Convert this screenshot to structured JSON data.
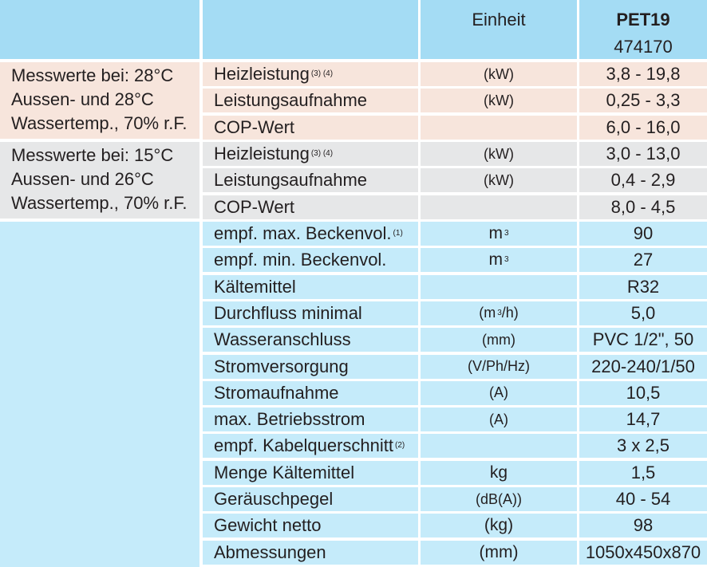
{
  "header": {
    "unit_label": "Einheit",
    "model_name": "PET19",
    "model_number": "474170"
  },
  "group1": {
    "lines": [
      "Messwerte bei: 28°C",
      "Aussen- und 28°C",
      "Wassertemp., 70% r.F."
    ],
    "rows": [
      {
        "param": "Heizleistung",
        "note": "(3) (4)",
        "unit": "(kW)",
        "value": "3,8 - 19,8"
      },
      {
        "param": "Leistungsaufnahme",
        "note": "",
        "unit": "(kW)",
        "value": "0,25 - 3,3"
      },
      {
        "param": "COP-Wert",
        "note": "",
        "unit": "",
        "value": "6,0 - 16,0"
      }
    ]
  },
  "group2": {
    "lines": [
      "Messwerte bei: 15°C",
      "Aussen- und 26°C",
      "Wassertemp., 70% r.F."
    ],
    "rows": [
      {
        "param": "Heizleistung",
        "note": "(3) (4)",
        "unit": "(kW)",
        "value": "3,0 - 13,0"
      },
      {
        "param": "Leistungsaufnahme",
        "note": "",
        "unit": "(kW)",
        "value": "0,4 - 2,9"
      },
      {
        "param": "COP-Wert",
        "note": "",
        "unit": "",
        "value": "8,0 - 4,5"
      }
    ]
  },
  "specs": [
    {
      "param": "empf. max. Beckenvol.",
      "note": "(1)",
      "unit": "m",
      "unit_sup": "3",
      "unit_suffix": "",
      "value": "90"
    },
    {
      "param": "empf. min. Beckenvol.",
      "note": "",
      "unit": "m",
      "unit_sup": "3",
      "unit_suffix": "",
      "value": "27"
    },
    {
      "param": "Kältemittel",
      "note": "",
      "unit": "",
      "unit_sup": "",
      "unit_suffix": "",
      "value": "R32"
    },
    {
      "param": "Durchfluss minimal",
      "note": "",
      "unit": "(m",
      "unit_sup": "3",
      "unit_suffix": "/h)",
      "value": "5,0"
    },
    {
      "param": "Wasseranschluss",
      "note": "",
      "unit": "(mm)",
      "unit_sup": "",
      "unit_suffix": "",
      "value": "PVC 1/2\", 50"
    },
    {
      "param": "Stromversorgung",
      "note": "",
      "unit": "(V/Ph/Hz)",
      "unit_sup": "",
      "unit_suffix": "",
      "value": "220-240/1/50"
    },
    {
      "param": "Stromaufnahme",
      "note": "",
      "unit": "(A)",
      "unit_sup": "",
      "unit_suffix": "",
      "value": "10,5"
    },
    {
      "param": "max. Betriebsstrom",
      "note": "",
      "unit": "(A)",
      "unit_sup": "",
      "unit_suffix": "",
      "value": "14,7"
    },
    {
      "param": "empf. Kabelquerschnitt",
      "note": "(2)",
      "unit": "",
      "unit_sup": "",
      "unit_suffix": "",
      "value": "3 x 2,5"
    },
    {
      "param": "Menge Kältemittel",
      "note": "",
      "unit": "kg",
      "unit_sup": "",
      "unit_suffix": "",
      "value": "1,5"
    },
    {
      "param": "Geräuschpegel",
      "note": "",
      "unit": "(dB(A))",
      "unit_sup": "",
      "unit_suffix": "",
      "value": "40 - 54"
    },
    {
      "param": "Gewicht netto",
      "note": "",
      "unit": "(kg)",
      "unit_sup": "",
      "unit_suffix": "",
      "value": "98"
    },
    {
      "param": "Abmessungen",
      "note": "",
      "unit": "(mm)",
      "unit_sup": "",
      "unit_suffix": "",
      "value": "1050x450x870"
    }
  ],
  "colors": {
    "header": "#a4dcf4",
    "group1": "#f7e5dc",
    "group2": "#e6e7e8",
    "specs": "#c5ebfa"
  }
}
